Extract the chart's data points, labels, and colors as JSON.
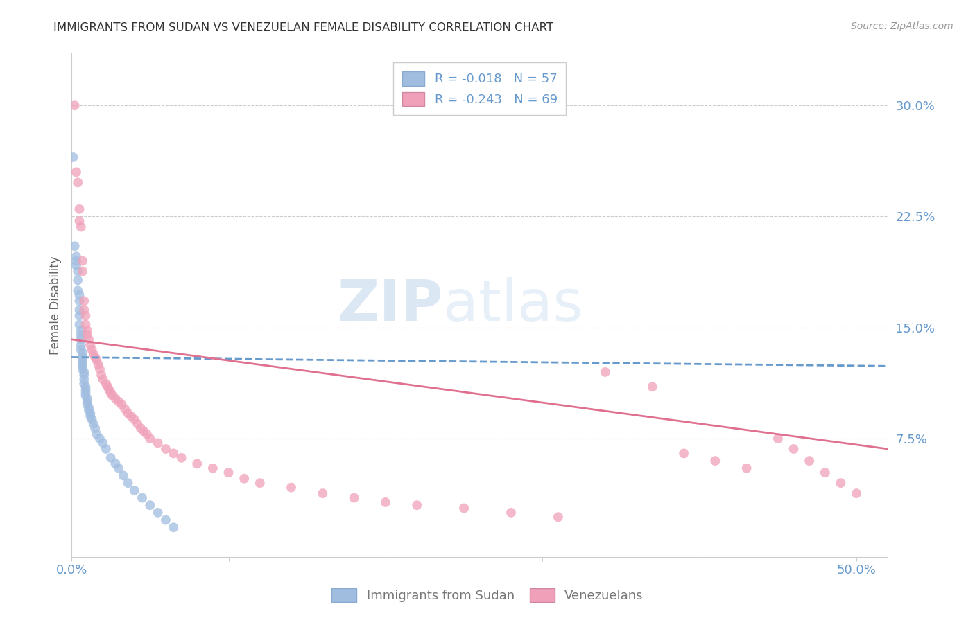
{
  "title": "IMMIGRANTS FROM SUDAN VS VENEZUELAN FEMALE DISABILITY CORRELATION CHART",
  "source": "Source: ZipAtlas.com",
  "ylabel": "Female Disability",
  "ytick_labels": [
    "30.0%",
    "22.5%",
    "15.0%",
    "7.5%"
  ],
  "ytick_values": [
    0.3,
    0.225,
    0.15,
    0.075
  ],
  "xlim": [
    0.0,
    0.52
  ],
  "ylim": [
    -0.005,
    0.335
  ],
  "legend_entries": [
    {
      "label": "R = -0.018   N = 57",
      "color": "#a8c4e0"
    },
    {
      "label": "R = -0.243   N = 69",
      "color": "#f0a0b0"
    }
  ],
  "series1_label": "Immigrants from Sudan",
  "series2_label": "Venezuelans",
  "series1_color": "#a0bde0",
  "series2_color": "#f0a0b8",
  "series1_line_color": "#6699cc",
  "series2_line_color": "#e07090",
  "trendline1_x": [
    0.0,
    0.52
  ],
  "trendline1_y": [
    0.13,
    0.124
  ],
  "trendline2_x": [
    0.0,
    0.52
  ],
  "trendline2_y": [
    0.142,
    0.068
  ],
  "watermark_zip": "ZIP",
  "watermark_atlas": "atlas",
  "background_color": "#ffffff",
  "grid_color": "#cccccc",
  "axis_label_color": "#6699cc",
  "title_color": "#333333",
  "scatter1_x": [
    0.001,
    0.002,
    0.003,
    0.003,
    0.003,
    0.004,
    0.004,
    0.004,
    0.005,
    0.005,
    0.005,
    0.005,
    0.005,
    0.006,
    0.006,
    0.006,
    0.006,
    0.006,
    0.007,
    0.007,
    0.007,
    0.007,
    0.007,
    0.007,
    0.008,
    0.008,
    0.008,
    0.008,
    0.009,
    0.009,
    0.009,
    0.009,
    0.01,
    0.01,
    0.01,
    0.011,
    0.011,
    0.012,
    0.012,
    0.013,
    0.014,
    0.015,
    0.016,
    0.018,
    0.02,
    0.022,
    0.025,
    0.028,
    0.03,
    0.033,
    0.036,
    0.04,
    0.045,
    0.05,
    0.055,
    0.06,
    0.065
  ],
  "scatter1_y": [
    0.265,
    0.205,
    0.198,
    0.192,
    0.195,
    0.188,
    0.182,
    0.175,
    0.172,
    0.168,
    0.162,
    0.158,
    0.152,
    0.148,
    0.145,
    0.142,
    0.138,
    0.135,
    0.133,
    0.13,
    0.128,
    0.126,
    0.124,
    0.122,
    0.12,
    0.118,
    0.115,
    0.112,
    0.11,
    0.108,
    0.106,
    0.104,
    0.102,
    0.1,
    0.098,
    0.096,
    0.094,
    0.092,
    0.09,
    0.088,
    0.085,
    0.082,
    0.078,
    0.075,
    0.072,
    0.068,
    0.062,
    0.058,
    0.055,
    0.05,
    0.045,
    0.04,
    0.035,
    0.03,
    0.025,
    0.02,
    0.015
  ],
  "scatter2_x": [
    0.002,
    0.003,
    0.004,
    0.005,
    0.005,
    0.006,
    0.007,
    0.007,
    0.008,
    0.008,
    0.009,
    0.009,
    0.01,
    0.01,
    0.011,
    0.012,
    0.013,
    0.014,
    0.015,
    0.016,
    0.017,
    0.018,
    0.019,
    0.02,
    0.022,
    0.023,
    0.024,
    0.025,
    0.026,
    0.028,
    0.03,
    0.032,
    0.034,
    0.036,
    0.038,
    0.04,
    0.042,
    0.044,
    0.046,
    0.048,
    0.05,
    0.055,
    0.06,
    0.065,
    0.07,
    0.08,
    0.09,
    0.1,
    0.11,
    0.12,
    0.14,
    0.16,
    0.18,
    0.2,
    0.22,
    0.25,
    0.28,
    0.31,
    0.34,
    0.37,
    0.39,
    0.41,
    0.43,
    0.45,
    0.46,
    0.47,
    0.48,
    0.49,
    0.5
  ],
  "scatter2_y": [
    0.3,
    0.255,
    0.248,
    0.23,
    0.222,
    0.218,
    0.195,
    0.188,
    0.168,
    0.162,
    0.158,
    0.152,
    0.148,
    0.145,
    0.142,
    0.138,
    0.135,
    0.132,
    0.13,
    0.128,
    0.125,
    0.122,
    0.118,
    0.115,
    0.112,
    0.11,
    0.108,
    0.106,
    0.104,
    0.102,
    0.1,
    0.098,
    0.095,
    0.092,
    0.09,
    0.088,
    0.085,
    0.082,
    0.08,
    0.078,
    0.075,
    0.072,
    0.068,
    0.065,
    0.062,
    0.058,
    0.055,
    0.052,
    0.048,
    0.045,
    0.042,
    0.038,
    0.035,
    0.032,
    0.03,
    0.028,
    0.025,
    0.022,
    0.12,
    0.11,
    0.065,
    0.06,
    0.055,
    0.075,
    0.068,
    0.06,
    0.052,
    0.045,
    0.038
  ]
}
